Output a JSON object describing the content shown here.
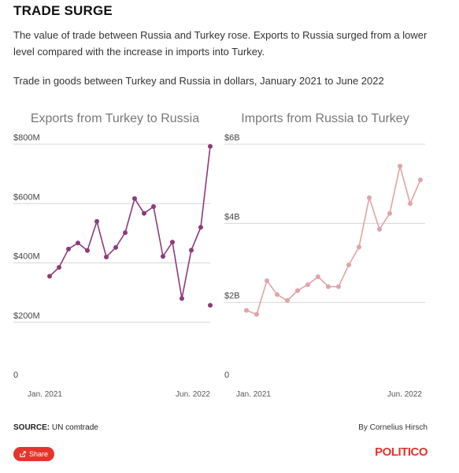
{
  "header": {
    "title": "TRADE SURGE",
    "description": "The value of trade between Russia and Turkey rose. Exports to Russia surged from a lower level compared with the increase in imports into Turkey.",
    "subtitle": "Trade in goods between Turkey and Russia in dollars, January 2021 to June 2022"
  },
  "colors": {
    "exports": "#8e3a7a",
    "imports": "#e0a3a8",
    "grid": "#d6d6d6",
    "brand": "#e6342c"
  },
  "chart_data": [
    {
      "type": "line",
      "title": "Exports from Turkey to Russia",
      "x": [
        "Jan. 2021",
        "Feb. 2021",
        "Mar. 2021",
        "Apr. 2021",
        "May 2021",
        "Jun. 2021",
        "Jul. 2021",
        "Aug. 2021",
        "Sep. 2021",
        "Oct. 2021",
        "Nov. 2021",
        "Dec. 2021",
        "Jan. 2022",
        "Feb. 2022",
        "Mar. 2022",
        "Apr. 2022",
        "May 2022",
        "Jun. 2022"
      ],
      "x_tick_labels": [
        "Jan. 2021",
        "Jun. 2022"
      ],
      "series": [
        {
          "values": [
            355,
            385,
            447,
            467,
            442,
            540,
            420,
            452,
            502,
            617,
            567,
            590,
            422,
            470,
            280,
            443,
            520,
            793
          ],
          "extra_point": {
            "x": "Jun. 2022",
            "y": 257
          }
        }
      ],
      "ylim": [
        0,
        800
      ],
      "y_ticks": [
        0,
        200,
        400,
        600,
        800
      ],
      "y_tick_labels": [
        "0",
        "$200M",
        "$400M",
        "$600M",
        "$800M"
      ],
      "grid": true
    },
    {
      "type": "line",
      "title": "Imports from Russia to Turkey",
      "x": [
        "Jan. 2021",
        "Feb. 2021",
        "Mar. 2021",
        "Apr. 2021",
        "May 2021",
        "Jun. 2021",
        "Jul. 2021",
        "Aug. 2021",
        "Sep. 2021",
        "Oct. 2021",
        "Nov. 2021",
        "Dec. 2021",
        "Jan. 2022",
        "Feb. 2022",
        "Mar. 2022",
        "Apr. 2022",
        "May 2022",
        "Jun. 2022"
      ],
      "x_tick_labels": [
        "Jan. 2021",
        "Jun. 2022"
      ],
      "series": [
        {
          "values": [
            1.8,
            1.7,
            2.55,
            2.2,
            2.05,
            2.3,
            2.45,
            2.65,
            2.4,
            2.4,
            2.95,
            3.4,
            4.65,
            3.85,
            4.25,
            5.45,
            4.5,
            5.1
          ]
        }
      ],
      "ylim": [
        0,
        6
      ],
      "y_ticks": [
        0,
        2,
        4,
        6
      ],
      "y_tick_labels": [
        "0",
        "$2B",
        "$4B",
        "$6B"
      ],
      "grid": true
    }
  ],
  "footer": {
    "source_label": "SOURCE:",
    "source_value": "UN comtrade",
    "byline": "By Cornelius Hirsch",
    "share_label": "Share",
    "logo": "POLITICO"
  }
}
